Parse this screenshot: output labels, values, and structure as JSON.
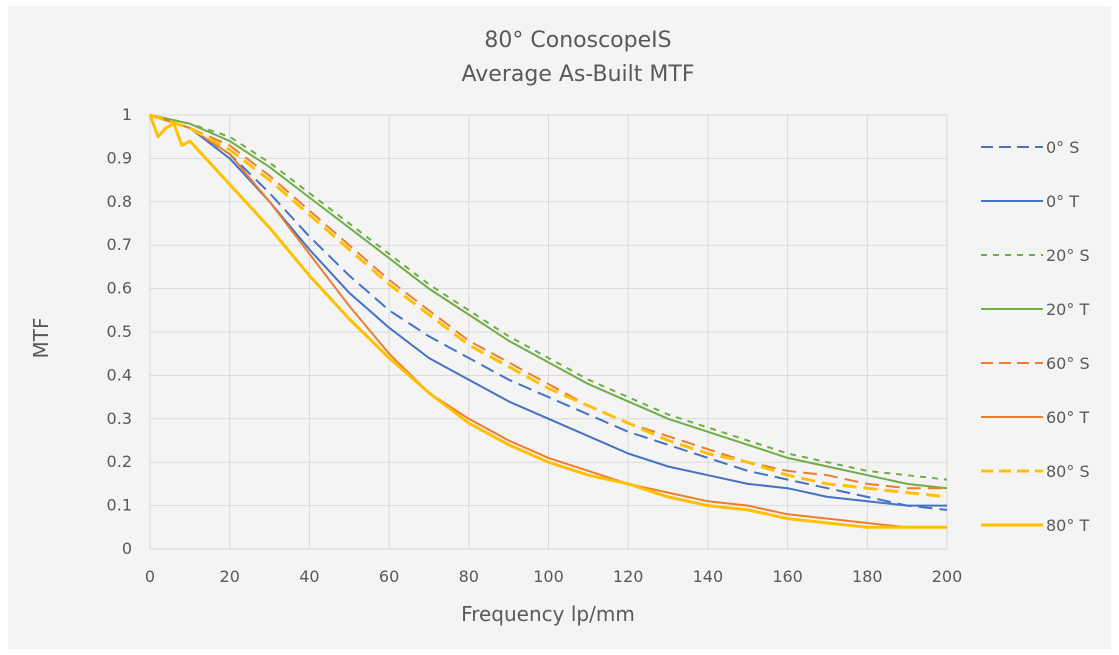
{
  "chart_data": {
    "type": "line",
    "title": "80° ConoscopeIS",
    "subtitle": "Average As-Built MTF",
    "xlabel": "Frequency lp/mm",
    "ylabel": "MTF",
    "xlim": [
      0,
      200
    ],
    "ylim": [
      0,
      1
    ],
    "x_ticks": [
      0,
      20,
      40,
      60,
      80,
      100,
      120,
      140,
      160,
      180,
      200
    ],
    "y_ticks": [
      0,
      0.1,
      0.2,
      0.3,
      0.4,
      0.5,
      0.6,
      0.7,
      0.8,
      0.9,
      1
    ],
    "y_tick_labels": [
      "0",
      "0.1",
      "0.2",
      "0.3",
      "0.4",
      "0.5",
      "0.6",
      "0.7",
      "0.8",
      "0.9",
      "1"
    ],
    "grid": true,
    "legend_position": "right",
    "series": [
      {
        "name": "0° S",
        "color": "#4472c4",
        "dash": "dashed",
        "x": [
          0,
          10,
          20,
          30,
          40,
          50,
          60,
          70,
          80,
          90,
          100,
          110,
          120,
          130,
          140,
          150,
          160,
          170,
          180,
          190,
          200
        ],
        "y": [
          1,
          0.97,
          0.91,
          0.82,
          0.72,
          0.63,
          0.55,
          0.49,
          0.44,
          0.39,
          0.35,
          0.31,
          0.27,
          0.24,
          0.21,
          0.18,
          0.16,
          0.14,
          0.12,
          0.1,
          0.09
        ]
      },
      {
        "name": "0° T",
        "color": "#4472c4",
        "dash": "solid",
        "x": [
          0,
          10,
          20,
          30,
          40,
          50,
          60,
          70,
          80,
          90,
          100,
          110,
          120,
          130,
          140,
          150,
          160,
          170,
          180,
          190,
          200
        ],
        "y": [
          1,
          0.97,
          0.9,
          0.8,
          0.69,
          0.59,
          0.51,
          0.44,
          0.39,
          0.34,
          0.3,
          0.26,
          0.22,
          0.19,
          0.17,
          0.15,
          0.14,
          0.12,
          0.11,
          0.1,
          0.1
        ]
      },
      {
        "name": "20° S",
        "color": "#70ad47",
        "dash": "dotted",
        "x": [
          0,
          10,
          20,
          30,
          40,
          50,
          60,
          70,
          80,
          90,
          100,
          110,
          120,
          130,
          140,
          150,
          160,
          170,
          180,
          190,
          200
        ],
        "y": [
          1,
          0.98,
          0.95,
          0.89,
          0.82,
          0.75,
          0.68,
          0.61,
          0.55,
          0.49,
          0.44,
          0.39,
          0.35,
          0.31,
          0.28,
          0.25,
          0.22,
          0.2,
          0.18,
          0.17,
          0.16
        ]
      },
      {
        "name": "20° T",
        "color": "#70ad47",
        "dash": "solid",
        "x": [
          0,
          10,
          20,
          30,
          40,
          50,
          60,
          70,
          80,
          90,
          100,
          110,
          120,
          130,
          140,
          150,
          160,
          170,
          180,
          190,
          200
        ],
        "y": [
          1,
          0.98,
          0.94,
          0.88,
          0.81,
          0.74,
          0.67,
          0.6,
          0.54,
          0.48,
          0.43,
          0.38,
          0.34,
          0.3,
          0.27,
          0.24,
          0.21,
          0.19,
          0.17,
          0.15,
          0.14
        ]
      },
      {
        "name": "60° S",
        "color": "#ed7d31",
        "dash": "dashed",
        "x": [
          0,
          10,
          20,
          30,
          40,
          50,
          60,
          70,
          80,
          90,
          100,
          110,
          120,
          130,
          140,
          150,
          160,
          170,
          180,
          190,
          200
        ],
        "y": [
          1,
          0.97,
          0.93,
          0.86,
          0.78,
          0.7,
          0.62,
          0.55,
          0.48,
          0.43,
          0.38,
          0.33,
          0.29,
          0.26,
          0.23,
          0.2,
          0.18,
          0.17,
          0.15,
          0.14,
          0.14
        ]
      },
      {
        "name": "60° T",
        "color": "#ed7d31",
        "dash": "solid",
        "x": [
          0,
          10,
          20,
          30,
          40,
          50,
          60,
          70,
          80,
          90,
          100,
          110,
          120,
          130,
          140,
          150,
          160,
          170,
          180,
          190,
          200
        ],
        "y": [
          1,
          0.97,
          0.91,
          0.8,
          0.68,
          0.56,
          0.45,
          0.36,
          0.3,
          0.25,
          0.21,
          0.18,
          0.15,
          0.13,
          0.11,
          0.1,
          0.08,
          0.07,
          0.06,
          0.05,
          0.05
        ]
      },
      {
        "name": "80° S",
        "color": "#ffc000",
        "dash": "dashed",
        "x": [
          0,
          10,
          20,
          30,
          40,
          50,
          60,
          70,
          80,
          90,
          100,
          110,
          120,
          130,
          140,
          150,
          160,
          170,
          180,
          190,
          200
        ],
        "y": [
          1,
          0.97,
          0.92,
          0.85,
          0.77,
          0.69,
          0.61,
          0.54,
          0.47,
          0.42,
          0.37,
          0.33,
          0.29,
          0.25,
          0.22,
          0.2,
          0.17,
          0.15,
          0.14,
          0.13,
          0.12
        ]
      },
      {
        "name": "80° T",
        "color": "#ffc000",
        "dash": "solid",
        "x": [
          0,
          2,
          4,
          6,
          8,
          10,
          12,
          15,
          20,
          30,
          40,
          50,
          60,
          70,
          80,
          90,
          100,
          110,
          120,
          130,
          140,
          150,
          160,
          170,
          180,
          190,
          200
        ],
        "y": [
          1,
          0.95,
          0.97,
          0.98,
          0.93,
          0.94,
          0.92,
          0.89,
          0.84,
          0.74,
          0.63,
          0.53,
          0.44,
          0.36,
          0.29,
          0.24,
          0.2,
          0.17,
          0.15,
          0.12,
          0.1,
          0.09,
          0.07,
          0.06,
          0.05,
          0.05,
          0.05
        ]
      }
    ]
  }
}
